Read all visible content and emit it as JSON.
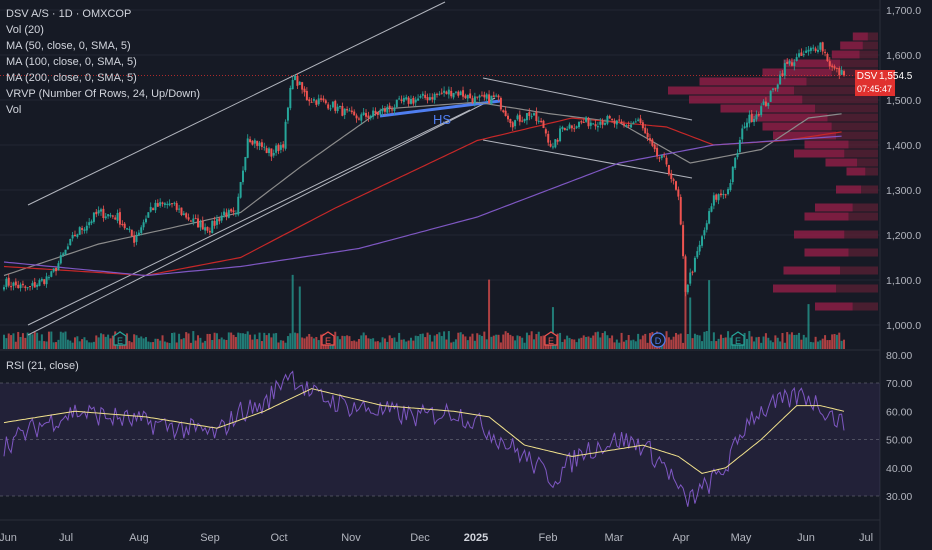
{
  "header": {
    "title": "DSV A/S · 1D · OMXCOP",
    "indicators": [
      "Vol (20)",
      "MA (50, close, 0, SMA, 5)",
      "MA (100, close, 0, SMA, 5)",
      "MA (200, close, 0, SMA, 5)",
      "VRVP (Number Of Rows, 24, Up/Down)",
      "Vol"
    ]
  },
  "rsi_label": "RSI (21, close)",
  "pattern_label": "HS",
  "price_tag": {
    "symbol": "DSV",
    "price": "1,554.5",
    "countdown": "07:45:47"
  },
  "colors": {
    "background": "#161a25",
    "up": "#26a69a",
    "down": "#ef5350",
    "ma50": "#8b8b8b",
    "ma100": "#c62828",
    "ma200": "#7e57c2",
    "rsi": "#7e57c2",
    "rsi_ma": "#f2e28c",
    "vp_up": "#9c1f4a",
    "vp_down": "#5b2034",
    "hs": "#4f7ef0"
  },
  "event_markers": [
    "E",
    "E",
    "E",
    "D",
    "E"
  ],
  "chart_data": {
    "type": "candlestick",
    "x_tick_labels": [
      "Jun",
      "Jul",
      "Aug",
      "Sep",
      "Oct",
      "Nov",
      "Dec",
      "2025",
      "Feb",
      "Mar",
      "Apr",
      "May",
      "Jun",
      "Jul"
    ],
    "price_axis": {
      "ticks": [
        "1,700.0",
        "1,600.0",
        "1,500.0",
        "1,400.0",
        "1,300.0",
        "1,200.0",
        "1,100.0",
        "1,000.0"
      ],
      "ylim": [
        972,
        1730
      ]
    },
    "rsi_axis": {
      "ticks": [
        "80.00",
        "70.00",
        "60.00",
        "50.00",
        "40.00",
        "30.00"
      ],
      "ylim": [
        22,
        80
      ],
      "band": [
        30,
        70
      ]
    },
    "last_price": 1554.5,
    "close_anchors": [
      [
        0,
        1095
      ],
      [
        10,
        1080
      ],
      [
        20,
        1110
      ],
      [
        30,
        1200
      ],
      [
        40,
        1250
      ],
      [
        48,
        1240
      ],
      [
        55,
        1190
      ],
      [
        62,
        1260
      ],
      [
        70,
        1270
      ],
      [
        80,
        1230
      ],
      [
        87,
        1215
      ],
      [
        93,
        1250
      ],
      [
        98,
        1240
      ],
      [
        103,
        1420
      ],
      [
        108,
        1400
      ],
      [
        113,
        1380
      ],
      [
        118,
        1405
      ],
      [
        122,
        1555
      ],
      [
        128,
        1505
      ],
      [
        138,
        1490
      ],
      [
        148,
        1460
      ],
      [
        158,
        1470
      ],
      [
        168,
        1495
      ],
      [
        178,
        1505
      ],
      [
        190,
        1520
      ],
      [
        200,
        1500
      ],
      [
        208,
        1505
      ],
      [
        215,
        1450
      ],
      [
        222,
        1470
      ],
      [
        228,
        1440
      ],
      [
        232,
        1390
      ],
      [
        236,
        1440
      ],
      [
        245,
        1450
      ],
      [
        255,
        1455
      ],
      [
        262,
        1440
      ],
      [
        268,
        1455
      ],
      [
        275,
        1380
      ],
      [
        280,
        1360
      ],
      [
        285,
        1280
      ],
      [
        288,
        1080
      ],
      [
        292,
        1140
      ],
      [
        296,
        1210
      ],
      [
        300,
        1280
      ],
      [
        306,
        1300
      ],
      [
        313,
        1450
      ],
      [
        318,
        1470
      ],
      [
        323,
        1500
      ],
      [
        330,
        1575
      ],
      [
        338,
        1600
      ],
      [
        345,
        1625
      ],
      [
        350,
        1570
      ],
      [
        355,
        1554.5
      ]
    ],
    "ma50_anchors": [
      [
        0,
        1110
      ],
      [
        40,
        1180
      ],
      [
        100,
        1250
      ],
      [
        125,
        1350
      ],
      [
        160,
        1480
      ],
      [
        200,
        1495
      ],
      [
        230,
        1470
      ],
      [
        260,
        1450
      ],
      [
        290,
        1360
      ],
      [
        320,
        1390
      ],
      [
        340,
        1460
      ],
      [
        355,
        1470
      ]
    ],
    "ma100_anchors": [
      [
        0,
        1130
      ],
      [
        60,
        1110
      ],
      [
        100,
        1150
      ],
      [
        140,
        1260
      ],
      [
        200,
        1410
      ],
      [
        240,
        1460
      ],
      [
        280,
        1440
      ],
      [
        300,
        1400
      ],
      [
        330,
        1410
      ],
      [
        355,
        1430
      ]
    ],
    "ma200_anchors": [
      [
        0,
        1140
      ],
      [
        60,
        1110
      ],
      [
        100,
        1130
      ],
      [
        150,
        1170
      ],
      [
        200,
        1240
      ],
      [
        260,
        1360
      ],
      [
        300,
        1400
      ],
      [
        355,
        1420
      ]
    ],
    "rsi_anchors": [
      [
        0,
        48
      ],
      [
        15,
        55
      ],
      [
        30,
        60
      ],
      [
        45,
        58
      ],
      [
        60,
        56
      ],
      [
        75,
        54
      ],
      [
        90,
        52
      ],
      [
        100,
        60
      ],
      [
        110,
        62
      ],
      [
        120,
        74
      ],
      [
        130,
        66
      ],
      [
        145,
        62
      ],
      [
        160,
        60
      ],
      [
        175,
        58
      ],
      [
        190,
        60
      ],
      [
        200,
        56
      ],
      [
        210,
        50
      ],
      [
        220,
        44
      ],
      [
        232,
        36
      ],
      [
        245,
        46
      ],
      [
        260,
        50
      ],
      [
        270,
        48
      ],
      [
        280,
        40
      ],
      [
        288,
        28
      ],
      [
        295,
        32
      ],
      [
        305,
        40
      ],
      [
        315,
        58
      ],
      [
        325,
        62
      ],
      [
        338,
        66
      ],
      [
        348,
        60
      ],
      [
        355,
        55
      ]
    ],
    "rsi_ma_anchors": [
      [
        0,
        56
      ],
      [
        30,
        60
      ],
      [
        60,
        58
      ],
      [
        90,
        54
      ],
      [
        110,
        60
      ],
      [
        130,
        68
      ],
      [
        160,
        62
      ],
      [
        190,
        60
      ],
      [
        205,
        58
      ],
      [
        220,
        48
      ],
      [
        240,
        44
      ],
      [
        270,
        48
      ],
      [
        285,
        44
      ],
      [
        295,
        38
      ],
      [
        305,
        40
      ],
      [
        320,
        50
      ],
      [
        335,
        62
      ],
      [
        345,
        62
      ],
      [
        355,
        60
      ]
    ],
    "volume_profile": [
      [
        1640,
        0.12,
        0.05
      ],
      [
        1620,
        0.18,
        0.08
      ],
      [
        1600,
        0.22,
        0.1
      ],
      [
        1580,
        0.45,
        0.2
      ],
      [
        1560,
        0.55,
        0.25
      ],
      [
        1540,
        0.85,
        0.3
      ],
      [
        1520,
        1.0,
        0.35
      ],
      [
        1500,
        0.9,
        0.3
      ],
      [
        1480,
        0.75,
        0.25
      ],
      [
        1460,
        0.6,
        0.25
      ],
      [
        1440,
        0.55,
        0.2
      ],
      [
        1420,
        0.5,
        0.25
      ],
      [
        1400,
        0.35,
        0.15
      ],
      [
        1380,
        0.4,
        0.2
      ],
      [
        1360,
        0.25,
        0.15
      ],
      [
        1340,
        0.15,
        0.1
      ],
      [
        1300,
        0.2,
        0.1
      ],
      [
        1260,
        0.3,
        0.15
      ],
      [
        1240,
        0.35,
        0.2
      ],
      [
        1200,
        0.4,
        0.2
      ],
      [
        1160,
        0.35,
        0.2
      ],
      [
        1120,
        0.45,
        0.25
      ],
      [
        1080,
        0.5,
        0.3
      ],
      [
        1040,
        0.3,
        0.15
      ]
    ]
  }
}
